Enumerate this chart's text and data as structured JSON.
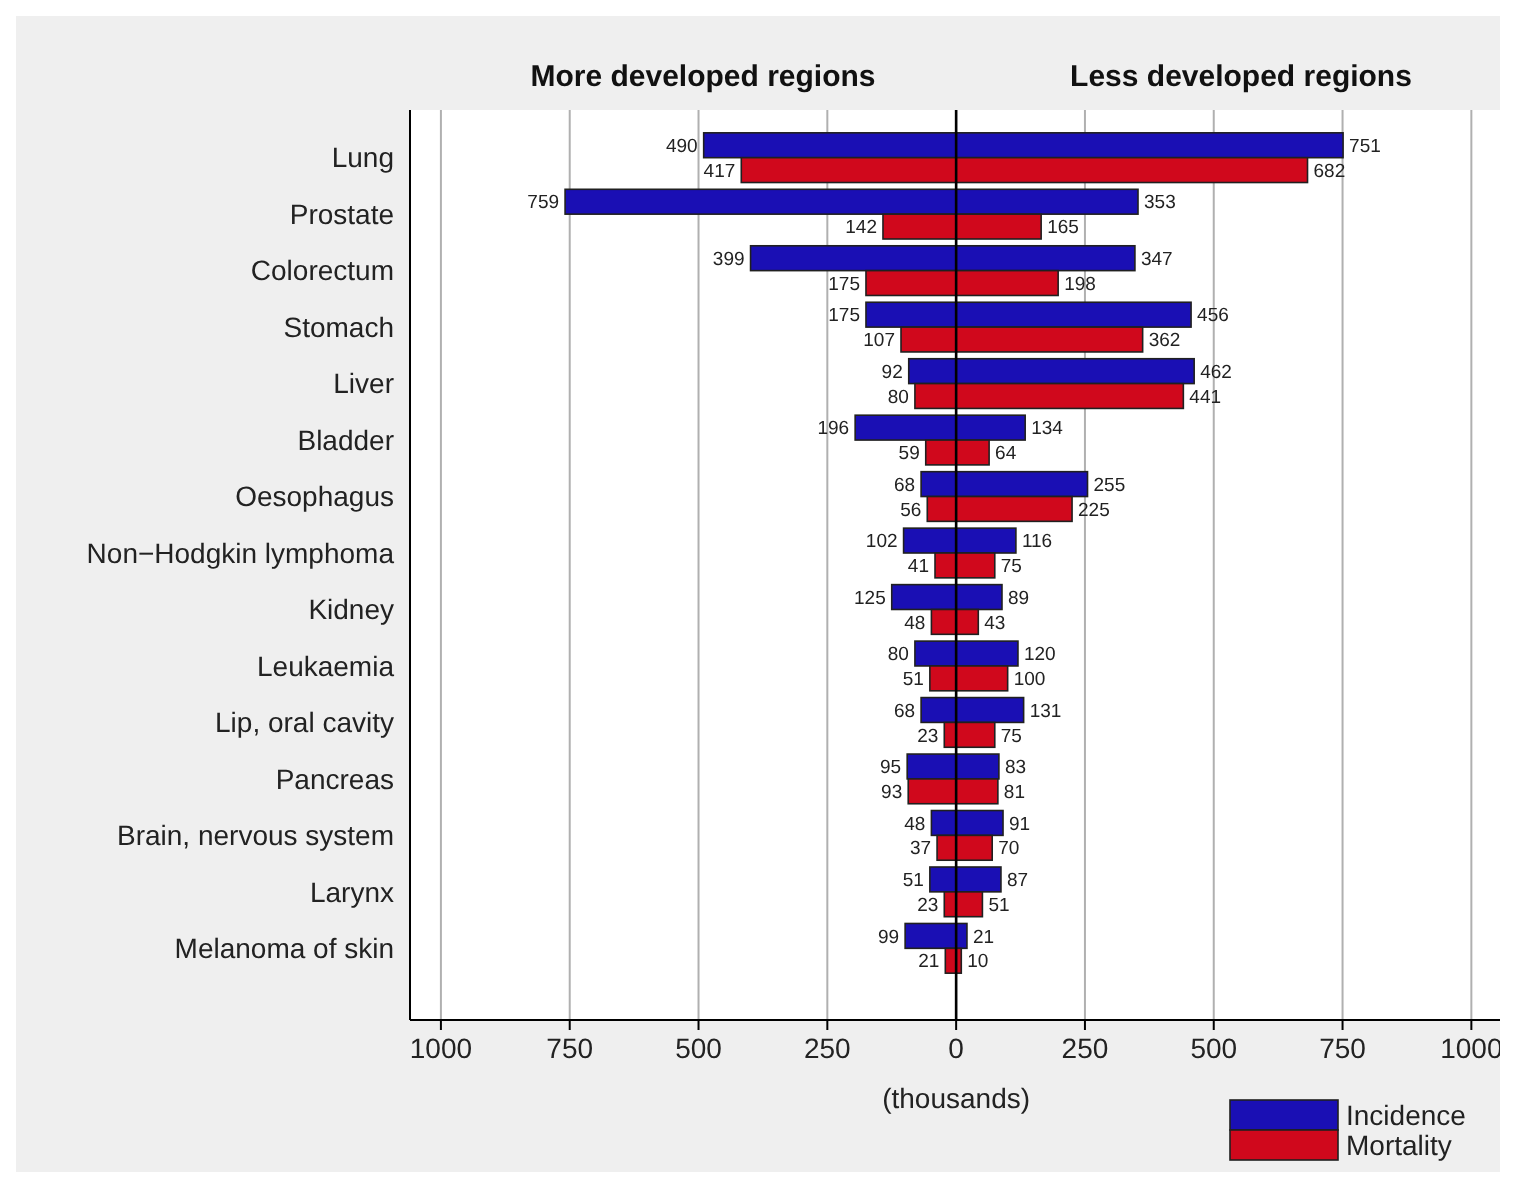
{
  "chart_data": {
    "type": "bar",
    "orientation": "horizontal",
    "xlabel": "(thousands)",
    "annotations": [
      "More developed regions",
      "Less developed regions"
    ],
    "categories": [
      "Lung",
      "Prostate",
      "Colorectum",
      "Stomach",
      "Liver",
      "Bladder",
      "Oesophagus",
      "Non−Hodgkin lymphoma",
      "Kidney",
      "Leukaemia",
      "Lip, oral cavity",
      "Pancreas",
      "Brain, nervous system",
      "Larynx",
      "Melanoma of skin"
    ],
    "series": [
      {
        "color": "#1a0fb4",
        "values": [
          490,
          759,
          399,
          175,
          92,
          196,
          68,
          102,
          125,
          80,
          68,
          95,
          48,
          51,
          99
        ],
        "base": [
          -490,
          -759,
          -399,
          -175,
          -92,
          -196,
          -68,
          -102,
          -125,
          -80,
          -68,
          -95,
          -48,
          -51,
          -99
        ]
      },
      {
        "color": "#d0081c",
        "values": [
          417,
          142,
          175,
          107,
          80,
          59,
          56,
          41,
          48,
          51,
          23,
          93,
          37,
          23,
          21
        ],
        "base": [
          -417,
          -142,
          -175,
          -107,
          -80,
          -59,
          -56,
          -41,
          -48,
          -51,
          -23,
          -93,
          -37,
          -23,
          -21
        ]
      },
      {
        "name": "Incidence",
        "color": "#1a0fb4",
        "values": [
          751,
          353,
          347,
          456,
          462,
          134,
          255,
          116,
          89,
          120,
          131,
          83,
          91,
          87,
          21
        ]
      },
      {
        "name": "Mortality",
        "color": "#d0081c",
        "values": [
          682,
          165,
          198,
          362,
          441,
          64,
          225,
          75,
          43,
          100,
          75,
          81,
          70,
          51,
          10
        ]
      }
    ],
    "data_labels": true,
    "xlim": [
      -1060,
      1075
    ],
    "xticks": [
      {
        "value": -1000,
        "label": "1000"
      },
      {
        "value": -750,
        "label": "750"
      },
      {
        "value": -500,
        "label": "500"
      },
      {
        "value": -250,
        "label": "250"
      },
      0,
      250,
      500,
      750,
      1000
    ],
    "ref_lines": [
      {
        "axis": "x",
        "value": 0,
        "color": "#000000"
      }
    ],
    "grid": "x",
    "legend": "bottom right"
  }
}
